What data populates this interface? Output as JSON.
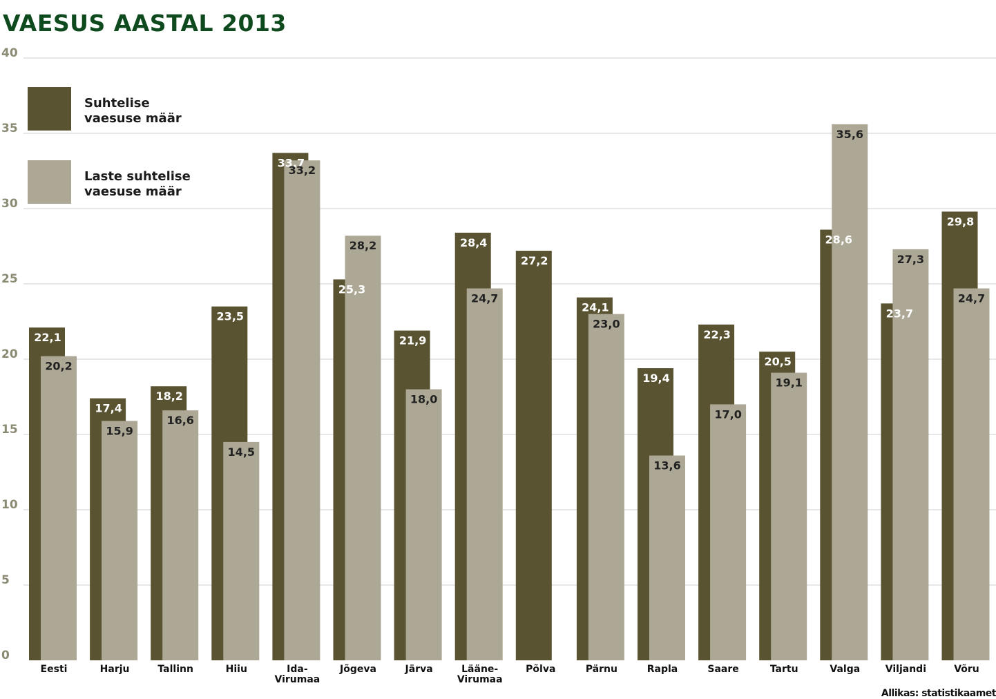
{
  "title": "VAESUS AASTAL 2013",
  "source": "Allikas: statistikaamet",
  "chart_data": {
    "type": "bar",
    "title": "VAESUS AASTAL 2013",
    "xlabel": "",
    "ylabel": "",
    "ylim": [
      0,
      40
    ],
    "yticks": [
      0,
      5,
      10,
      15,
      20,
      25,
      30,
      35,
      40
    ],
    "grid": true,
    "legend_position": "top-left",
    "categories": [
      "Eesti",
      "Harju",
      "Tallinn",
      "Hiiu",
      "Ida-Virumaa",
      "Jõgeva",
      "Järva",
      "Lääne-Virumaa",
      "Põlva",
      "Pärnu",
      "Rapla",
      "Saare",
      "Tartu",
      "Valga",
      "Viljandi",
      "Võru"
    ],
    "category_lines": [
      [
        "Eesti"
      ],
      [
        "Harju"
      ],
      [
        "Tallinn"
      ],
      [
        "Hiiu"
      ],
      [
        "Ida-",
        "Virumaa"
      ],
      [
        "Jõgeva"
      ],
      [
        "Järva"
      ],
      [
        "Lääne-",
        "Virumaa"
      ],
      [
        "Põlva"
      ],
      [
        "Pärnu"
      ],
      [
        "Rapla"
      ],
      [
        "Saare"
      ],
      [
        "Tartu"
      ],
      [
        "Valga"
      ],
      [
        "Viljandi"
      ],
      [
        "Võru"
      ]
    ],
    "series": [
      {
        "name": "Suhtelise vaesuse määr",
        "legend_lines": [
          "Suhtelise",
          "vaesuse määr"
        ],
        "color": "#5a5331",
        "values": [
          22.1,
          17.4,
          18.2,
          23.5,
          33.7,
          25.3,
          21.9,
          28.4,
          27.2,
          24.1,
          19.4,
          22.3,
          20.5,
          28.6,
          23.7,
          29.8
        ],
        "labels": [
          "22,1",
          "17,4",
          "18,2",
          "23,5",
          "33,7",
          "25,3",
          "21,9",
          "28,4",
          "27,2",
          "24,1",
          "19,4",
          "22,3",
          "20,5",
          "28,6",
          "23,7",
          "29,8"
        ]
      },
      {
        "name": "Laste suhtelise vaesuse määr",
        "legend_lines": [
          "Laste suhtelise",
          "vaesuse määr"
        ],
        "color": "#aca895",
        "values": [
          20.2,
          15.9,
          16.6,
          14.5,
          33.2,
          28.2,
          18.0,
          24.7,
          null,
          23.0,
          13.6,
          17.0,
          19.1,
          35.6,
          27.3,
          24.7
        ],
        "labels": [
          "20,2",
          "15,9",
          "16,6",
          "14,5",
          "33,2",
          "28,2",
          "18,0",
          "24,7",
          "",
          "23,0",
          "13,6",
          "17,0",
          "19,1",
          "35,6",
          "27,3",
          "24,7"
        ]
      }
    ]
  }
}
